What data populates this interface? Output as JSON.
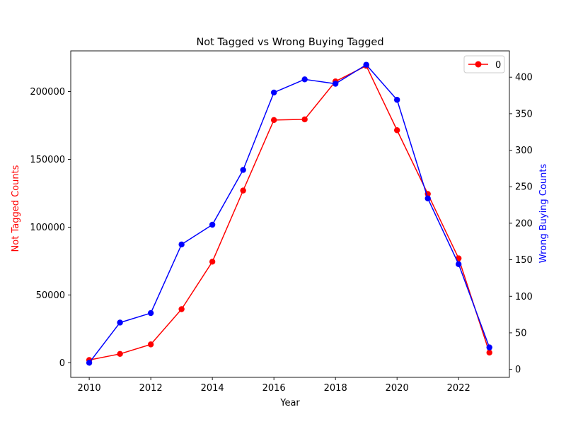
{
  "chart_data": {
    "type": "line",
    "title": "Not Tagged vs Wrong Buying Tagged",
    "xlabel": "Year",
    "xlim": [
      2009.4,
      2023.65
    ],
    "xticks": [
      2010,
      2012,
      2014,
      2016,
      2018,
      2020,
      2022
    ],
    "x": [
      2010,
      2011,
      2012,
      2013,
      2014,
      2015,
      2016,
      2017,
      2018,
      2019,
      2020,
      2021,
      2022,
      2023
    ],
    "left_axis": {
      "label": "Not Tagged Counts",
      "color": "#ff0000",
      "ylim": [
        -10800,
        230000
      ],
      "ticks": [
        0,
        50000,
        100000,
        150000,
        200000
      ]
    },
    "right_axis": {
      "label": "Wrong Buying Counts",
      "color": "#0000ff",
      "ylim": [
        -11,
        436
      ],
      "ticks": [
        0,
        50,
        100,
        150,
        200,
        250,
        300,
        350,
        400
      ]
    },
    "series": [
      {
        "name": "0",
        "axis": "left",
        "color": "#ff0000",
        "marker": "circle",
        "values": [
          2000,
          6500,
          13500,
          39500,
          74500,
          127000,
          179000,
          179500,
          207500,
          219000,
          171500,
          124500,
          77000,
          7500
        ]
      },
      {
        "name": "",
        "axis": "right",
        "color": "#0000ff",
        "marker": "circle",
        "values": [
          9,
          64,
          77,
          171,
          198,
          273,
          379,
          397,
          391,
          417,
          369,
          234,
          144,
          30
        ]
      }
    ],
    "legend": {
      "placement": "top-right",
      "entries": [
        "0"
      ]
    },
    "grid": false
  }
}
